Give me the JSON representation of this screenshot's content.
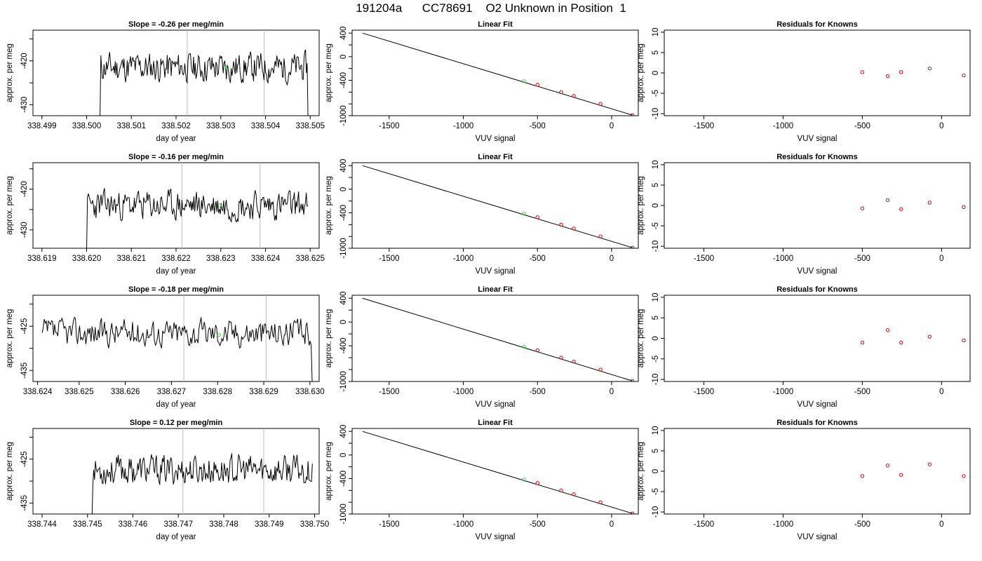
{
  "title": "191204a      CC78691    O2 Unknown in Position  1",
  "colors": {
    "line": "#000000",
    "known_marker": "#cc0000",
    "unknown_marker": "#33dd33",
    "vline": "#bbbbbb"
  },
  "chart_data": [
    {
      "id": "ts1",
      "type": "line",
      "title": "Slope =  -0.26  per meg/min",
      "xlabel": "day of year",
      "ylabel": "approx. per meg",
      "xlim": [
        338.4988,
        338.5052
      ],
      "ylim": [
        -432.5,
        -413
      ],
      "xticks": [
        338.499,
        338.5,
        338.501,
        338.502,
        338.503,
        338.504,
        338.505
      ],
      "xtick_labels": [
        "338.499",
        "338.500",
        "338.501",
        "338.502",
        "338.503",
        "338.504",
        "338.505"
      ],
      "yticks": [
        -430,
        -425,
        -420,
        -415
      ],
      "ytick_labels": [
        "-430",
        "",
        "-420",
        ""
      ],
      "series_start": 338.5003,
      "series_end": 338.50495,
      "base": -421.5,
      "amp": 3,
      "seed": 11,
      "start_value": -433,
      "end_value": -433,
      "vlines": [
        338.50225,
        338.50397
      ],
      "marker": {
        "x": 338.50314,
        "y": -421.5
      }
    },
    {
      "id": "lf1",
      "type": "scatter",
      "title": "Linear Fit",
      "xlabel": "VUV signal",
      "ylabel": "approx. per meg",
      "xlim": [
        -1750,
        180
      ],
      "ylim": [
        -1000,
        450
      ],
      "xticks": [
        -1500,
        -1000,
        -500,
        0
      ],
      "xtick_labels": [
        "-1500",
        "-1000",
        "-500",
        "0"
      ],
      "yticks": [
        400,
        200,
        0,
        -200,
        -400,
        -600,
        -800,
        -1000
      ],
      "ytick_labels": [
        "400",
        "",
        "0",
        "",
        "-400",
        "",
        "",
        "-1000"
      ],
      "line": {
        "x": [
          -1680,
          140
        ],
        "y": [
          400,
          -990
        ]
      },
      "knowns": {
        "x": [
          -500,
          -340,
          -255,
          -75,
          140
        ],
        "y": [
          -475,
          -600,
          -665,
          -800,
          -990
        ]
      },
      "unknown": {
        "x": [
          -590
        ],
        "y": [
          -415
        ]
      }
    },
    {
      "id": "res1",
      "type": "scatter",
      "title": "Residuals for Knowns",
      "xlabel": "VUV signal",
      "ylabel": "approx. per meg",
      "xlim": [
        -1750,
        180
      ],
      "ylim": [
        -10.5,
        10.5
      ],
      "xticks": [
        -1500,
        -1000,
        -500,
        0
      ],
      "xtick_labels": [
        "-1500",
        "-1000",
        "-500",
        "0"
      ],
      "yticks": [
        10,
        5,
        0,
        -5,
        -10
      ],
      "ytick_labels": [
        "10",
        "5",
        "0",
        "-5",
        "-10"
      ],
      "knowns": {
        "x": [
          -500,
          -340,
          -255,
          -75,
          140
        ],
        "y": [
          0.2,
          -0.8,
          0.2,
          1.1,
          -0.6
        ]
      }
    },
    {
      "id": "ts2",
      "type": "line",
      "title": "Slope =  -0.16  per meg/min",
      "xlabel": "day of year",
      "ylabel": "approx. per meg",
      "xlim": [
        338.6188,
        338.6252
      ],
      "ylim": [
        -434.5,
        -413.5
      ],
      "xticks": [
        338.619,
        338.62,
        338.621,
        338.622,
        338.623,
        338.624,
        338.625
      ],
      "xtick_labels": [
        "338.619",
        "338.620",
        "338.621",
        "338.622",
        "338.623",
        "338.624",
        "338.625"
      ],
      "yticks": [
        -430,
        -425,
        -420,
        -415
      ],
      "ytick_labels": [
        "-430",
        "",
        "-420",
        ""
      ],
      "series_start": 338.62,
      "series_end": 338.62495,
      "base": -424,
      "amp": 3.2,
      "seed": 23,
      "start_value": -435,
      "end_value": -424,
      "vlines": [
        338.62213,
        338.62388
      ],
      "marker": {
        "x": 338.62298,
        "y": -424
      }
    },
    {
      "id": "lf2",
      "type": "scatter",
      "title": "Linear Fit",
      "xlabel": "VUV signal",
      "ylabel": "approx. per meg",
      "xlim": [
        -1750,
        180
      ],
      "ylim": [
        -1000,
        450
      ],
      "xticks": [
        -1500,
        -1000,
        -500,
        0
      ],
      "xtick_labels": [
        "-1500",
        "-1000",
        "-500",
        "0"
      ],
      "yticks": [
        400,
        200,
        0,
        -200,
        -400,
        -600,
        -800,
        -1000
      ],
      "ytick_labels": [
        "400",
        "",
        "0",
        "",
        "-400",
        "",
        "",
        "-1000"
      ],
      "line": {
        "x": [
          -1680,
          140
        ],
        "y": [
          400,
          -990
        ]
      },
      "knowns": {
        "x": [
          -500,
          -340,
          -255,
          -75,
          140
        ],
        "y": [
          -475,
          -600,
          -665,
          -800,
          -990
        ]
      },
      "unknown": {
        "x": [
          -590
        ],
        "y": [
          -415
        ]
      }
    },
    {
      "id": "res2",
      "type": "scatter",
      "title": "Residuals for Knowns",
      "xlabel": "VUV signal",
      "ylabel": "approx. per meg",
      "xlim": [
        -1750,
        180
      ],
      "ylim": [
        -10.5,
        10.5
      ],
      "xticks": [
        -1500,
        -1000,
        -500,
        0
      ],
      "xtick_labels": [
        "-1500",
        "-1000",
        "-500",
        "0"
      ],
      "yticks": [
        10,
        5,
        0,
        -5,
        -10
      ],
      "ytick_labels": [
        "10",
        "5",
        "0",
        "-5",
        "-10"
      ],
      "knowns": {
        "x": [
          -500,
          -340,
          -255,
          -75,
          140
        ],
        "y": [
          -0.7,
          1.3,
          -0.9,
          0.7,
          -0.4
        ]
      }
    },
    {
      "id": "ts3",
      "type": "line",
      "title": "Slope =  -0.18  per meg/min",
      "xlabel": "day of year",
      "ylabel": "approx. per meg",
      "xlim": [
        338.624,
        338.6302
      ],
      "ylim": [
        -437.5,
        -418
      ],
      "xticks": [
        338.6241,
        338.625,
        338.626,
        338.627,
        338.628,
        338.629,
        338.63
      ],
      "xtick_labels": [
        "338.624",
        "338.625",
        "338.626",
        "338.627",
        "338.628",
        "338.629",
        "338.630"
      ],
      "yticks": [
        -435,
        -430,
        -425,
        -420
      ],
      "ytick_labels": [
        "-435",
        "",
        "-425",
        ""
      ],
      "series_start": 338.6242,
      "series_end": 338.63005,
      "base": -426.5,
      "amp": 2.8,
      "seed": 37,
      "start_value": -426.5,
      "end_value": -438,
      "vlines": [
        338.62727,
        338.62905
      ],
      "marker": {
        "x": 338.62803,
        "y": -427
      }
    },
    {
      "id": "lf3",
      "type": "scatter",
      "title": "Linear Fit",
      "xlabel": "VUV signal",
      "ylabel": "approx. per meg",
      "xlim": [
        -1750,
        180
      ],
      "ylim": [
        -1000,
        450
      ],
      "xticks": [
        -1500,
        -1000,
        -500,
        0
      ],
      "xtick_labels": [
        "-1500",
        "-1000",
        "-500",
        "0"
      ],
      "yticks": [
        400,
        200,
        0,
        -200,
        -400,
        -600,
        -800,
        -1000
      ],
      "ytick_labels": [
        "400",
        "",
        "0",
        "",
        "-400",
        "",
        "",
        "-1000"
      ],
      "line": {
        "x": [
          -1680,
          140
        ],
        "y": [
          400,
          -990
        ]
      },
      "knowns": {
        "x": [
          -500,
          -340,
          -255,
          -75,
          140
        ],
        "y": [
          -475,
          -600,
          -665,
          -800,
          -990
        ]
      },
      "unknown": {
        "x": [
          -590
        ],
        "y": [
          -415
        ]
      }
    },
    {
      "id": "res3",
      "type": "scatter",
      "title": "Residuals for Knowns",
      "xlabel": "VUV signal",
      "ylabel": "approx. per meg",
      "xlim": [
        -1750,
        180
      ],
      "ylim": [
        -10.5,
        10.5
      ],
      "xticks": [
        -1500,
        -1000,
        -500,
        0
      ],
      "xtick_labels": [
        "-1500",
        "-1000",
        "-500",
        "0"
      ],
      "yticks": [
        10,
        5,
        0,
        -5,
        -10
      ],
      "ytick_labels": [
        "10",
        "5",
        "0",
        "-5",
        "-10"
      ],
      "knowns": {
        "x": [
          -500,
          -340,
          -255,
          -75,
          140
        ],
        "y": [
          -1.0,
          2.0,
          -1.0,
          0.4,
          -0.5
        ]
      }
    },
    {
      "id": "ts4",
      "type": "line",
      "title": "Slope =  0.12  per meg/min",
      "xlabel": "day of year",
      "ylabel": "approx. per meg",
      "xlim": [
        338.7438,
        338.7501
      ],
      "ylim": [
        -437.5,
        -418
      ],
      "xticks": [
        338.744,
        338.745,
        338.746,
        338.747,
        338.748,
        338.749,
        338.75
      ],
      "xtick_labels": [
        "338.744",
        "338.745",
        "338.746",
        "338.747",
        "338.748",
        "338.749",
        "338.750"
      ],
      "yticks": [
        -435,
        -430,
        -425,
        -420
      ],
      "ytick_labels": [
        "-435",
        "",
        "-425",
        ""
      ],
      "series_start": 338.7451,
      "series_end": 338.74995,
      "base": -427.5,
      "amp": 3,
      "seed": 53,
      "start_value": -438,
      "end_value": -426,
      "vlines": [
        338.7471,
        338.74888
      ],
      "marker": {
        "x": 338.74798,
        "y": -428
      }
    },
    {
      "id": "lf4",
      "type": "scatter",
      "title": "Linear Fit",
      "xlabel": "VUV signal",
      "ylabel": "approx. per meg",
      "xlim": [
        -1750,
        180
      ],
      "ylim": [
        -1000,
        450
      ],
      "xticks": [
        -1500,
        -1000,
        -500,
        0
      ],
      "xtick_labels": [
        "-1500",
        "-1000",
        "-500",
        "0"
      ],
      "yticks": [
        400,
        200,
        0,
        -200,
        -400,
        -600,
        -800,
        -1000
      ],
      "ytick_labels": [
        "400",
        "",
        "0",
        "",
        "-400",
        "",
        "",
        "-1000"
      ],
      "line": {
        "x": [
          -1680,
          140
        ],
        "y": [
          400,
          -990
        ]
      },
      "knowns": {
        "x": [
          -500,
          -340,
          -255,
          -75,
          140
        ],
        "y": [
          -475,
          -600,
          -665,
          -800,
          -990
        ]
      },
      "unknown": {
        "x": [
          -590
        ],
        "y": [
          -415
        ]
      }
    },
    {
      "id": "res4",
      "type": "scatter",
      "title": "Residuals for Knowns",
      "xlabel": "VUV signal",
      "ylabel": "approx. per meg",
      "xlim": [
        -1750,
        180
      ],
      "ylim": [
        -10.5,
        10.5
      ],
      "xticks": [
        -1500,
        -1000,
        -500,
        0
      ],
      "xtick_labels": [
        "-1500",
        "-1000",
        "-500",
        "0"
      ],
      "yticks": [
        10,
        5,
        0,
        -5,
        -10
      ],
      "ytick_labels": [
        "10",
        "5",
        "0",
        "-5",
        "-10"
      ],
      "knowns": {
        "x": [
          -500,
          -340,
          -255,
          -75,
          140
        ],
        "y": [
          -1.2,
          1.4,
          -0.9,
          1.7,
          -1.2
        ]
      }
    }
  ]
}
